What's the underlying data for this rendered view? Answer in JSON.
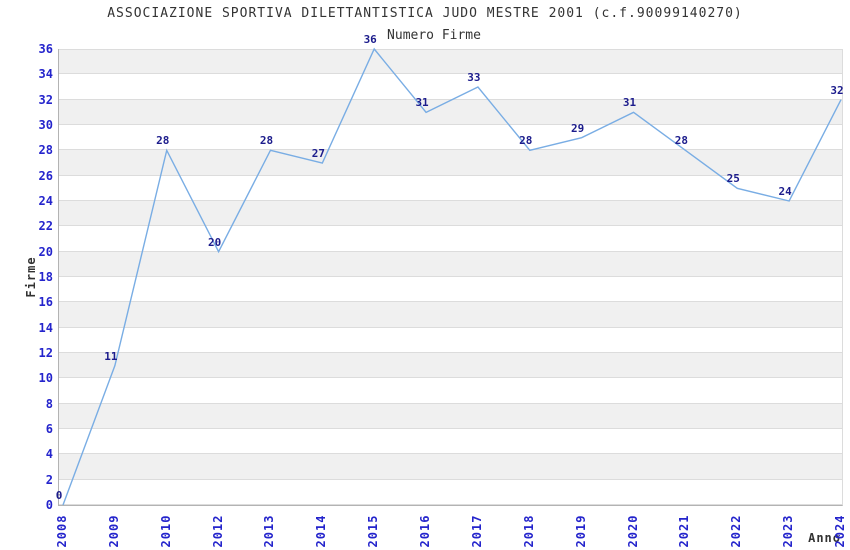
{
  "chart_data": {
    "type": "line",
    "title": "ASSOCIAZIONE SPORTIVA DILETTANTISTICA JUDO MESTRE 2001 (c.f.90099140270)",
    "subtitle": "Numero Firme",
    "xlabel": "Anno",
    "ylabel": "Firme",
    "categories": [
      "2008",
      "2009",
      "2010",
      "2012",
      "2013",
      "2014",
      "2015",
      "2016",
      "2017",
      "2018",
      "2019",
      "2020",
      "2021",
      "2022",
      "2023",
      "2024"
    ],
    "values": [
      0,
      11,
      28,
      20,
      28,
      27,
      36,
      31,
      33,
      28,
      29,
      31,
      28,
      25,
      24,
      32
    ],
    "yticks": [
      0,
      2,
      4,
      6,
      8,
      10,
      12,
      14,
      16,
      18,
      20,
      22,
      24,
      26,
      28,
      30,
      32,
      34,
      36
    ],
    "ylim": [
      0,
      36
    ],
    "grid": "horizontal",
    "legend": "none",
    "colors": {
      "line": "#79ade4",
      "tick_label": "#2424cc",
      "data_label": "#1c1c8c",
      "band": "#f0f0f0",
      "gridline": "#dcdcdc",
      "axis": "#b3b3b3",
      "text": "#333333"
    }
  }
}
